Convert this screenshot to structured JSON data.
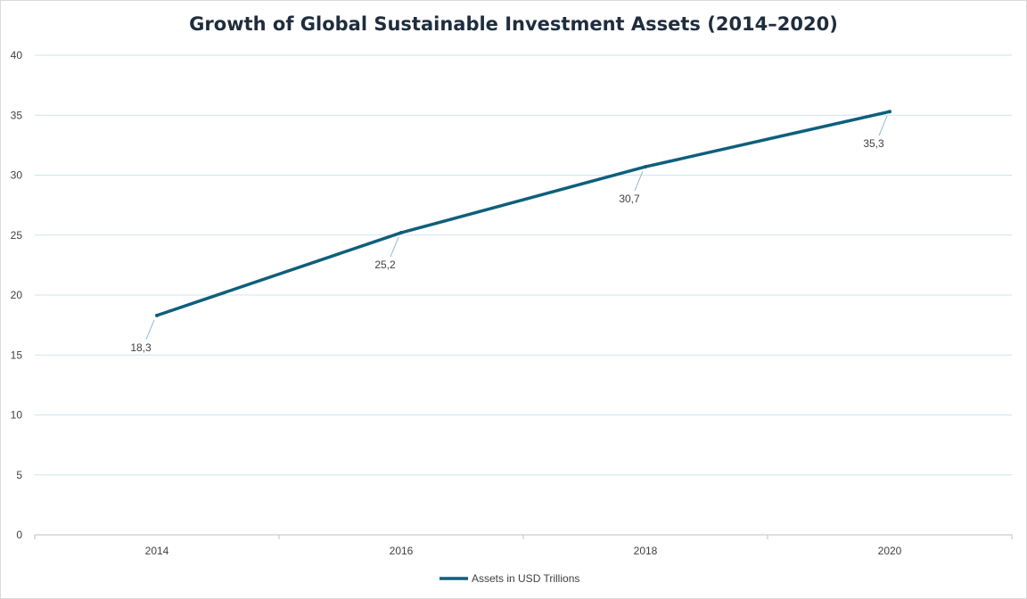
{
  "chart_data": {
    "type": "line",
    "title": "Growth of Global Sustainable Investment Assets (2014–2020)",
    "categories": [
      "2014",
      "2016",
      "2018",
      "2020"
    ],
    "series": [
      {
        "name": "Assets in USD Trillions",
        "values": [
          18.3,
          25.2,
          30.7,
          35.3
        ],
        "labels": [
          "18,3",
          "25,2",
          "30,7",
          "35,3"
        ],
        "color": "#0e5f7c"
      }
    ],
    "ylim": [
      0,
      40
    ],
    "yticks": [
      "0",
      "5",
      "10",
      "15",
      "20",
      "25",
      "30",
      "35",
      "40"
    ],
    "grid": true,
    "legend": "bottom",
    "colors": {
      "grid": "#cfe3ef",
      "axis": "#bfbfbf",
      "leader": "#8fb9cc"
    }
  }
}
